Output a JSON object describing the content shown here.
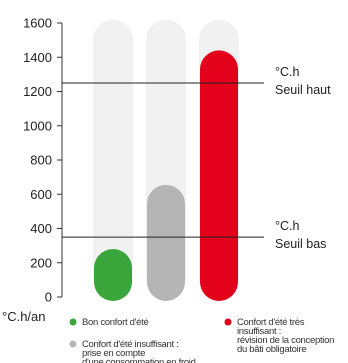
{
  "chart_data": {
    "type": "bar",
    "y_ticks": [
      0,
      200,
      400,
      600,
      800,
      1000,
      1200,
      1400,
      1600
    ],
    "ylim": [
      0,
      1600
    ],
    "y_unit_label": "°C.h/an",
    "track_max": 1620,
    "bars": [
      {
        "value": 280,
        "color": "#3aa53a"
      },
      {
        "value": 655,
        "color": "#b5b5b5"
      },
      {
        "value": 1440,
        "color": "#e3001b"
      }
    ],
    "thresholds": [
      {
        "value": 1250,
        "unit": "°C.h",
        "label": "Seuil haut"
      },
      {
        "value": 350,
        "unit": "°C.h",
        "label": "Seuil bas"
      }
    ],
    "legend": [
      {
        "color": "#3aa53a",
        "lines": [
          "Bon confort d'été"
        ]
      },
      {
        "color": "#b5b5b5",
        "lines": [
          "Confort d'été insuffisant :",
          "prise en compte",
          "d'une consommation en froid"
        ]
      },
      {
        "color": "#e3001b",
        "lines": [
          "Confort d'été très",
          "insuffisant :",
          "révision de la conception",
          "du bâti obligatoire"
        ]
      }
    ]
  }
}
